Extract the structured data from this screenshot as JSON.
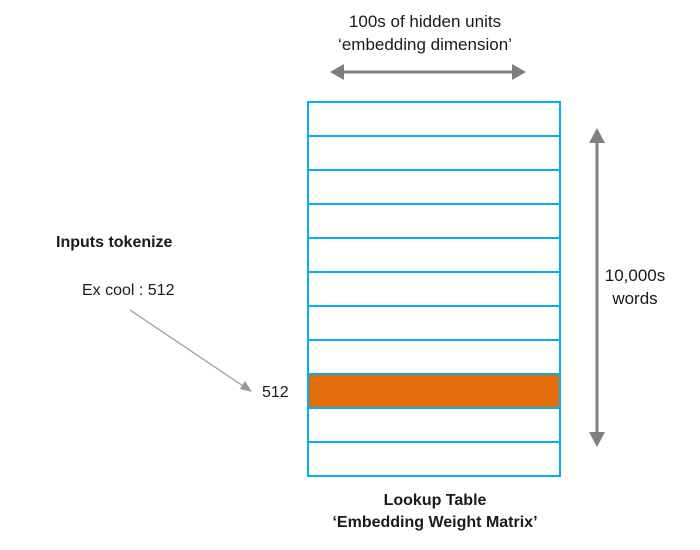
{
  "embedding_dimension": {
    "line1": "100s of hidden units",
    "line2": "‘embedding dimension’"
  },
  "vocab_size": {
    "line1": "10,000s",
    "line2": "words"
  },
  "inputs": {
    "title": "Inputs tokenize",
    "example": "Ex cool : 512",
    "row_label": "512"
  },
  "table": {
    "title": "Lookup Table",
    "subtitle": "‘Embedding Weight Matrix’",
    "row_count": 11,
    "highlighted_row": 8,
    "row_color": "#ffffff",
    "highlight_color": "#e36c0a",
    "border_color": "#00b0f0"
  },
  "colors": {
    "arrow": "#808080",
    "pointer": "#999999"
  }
}
